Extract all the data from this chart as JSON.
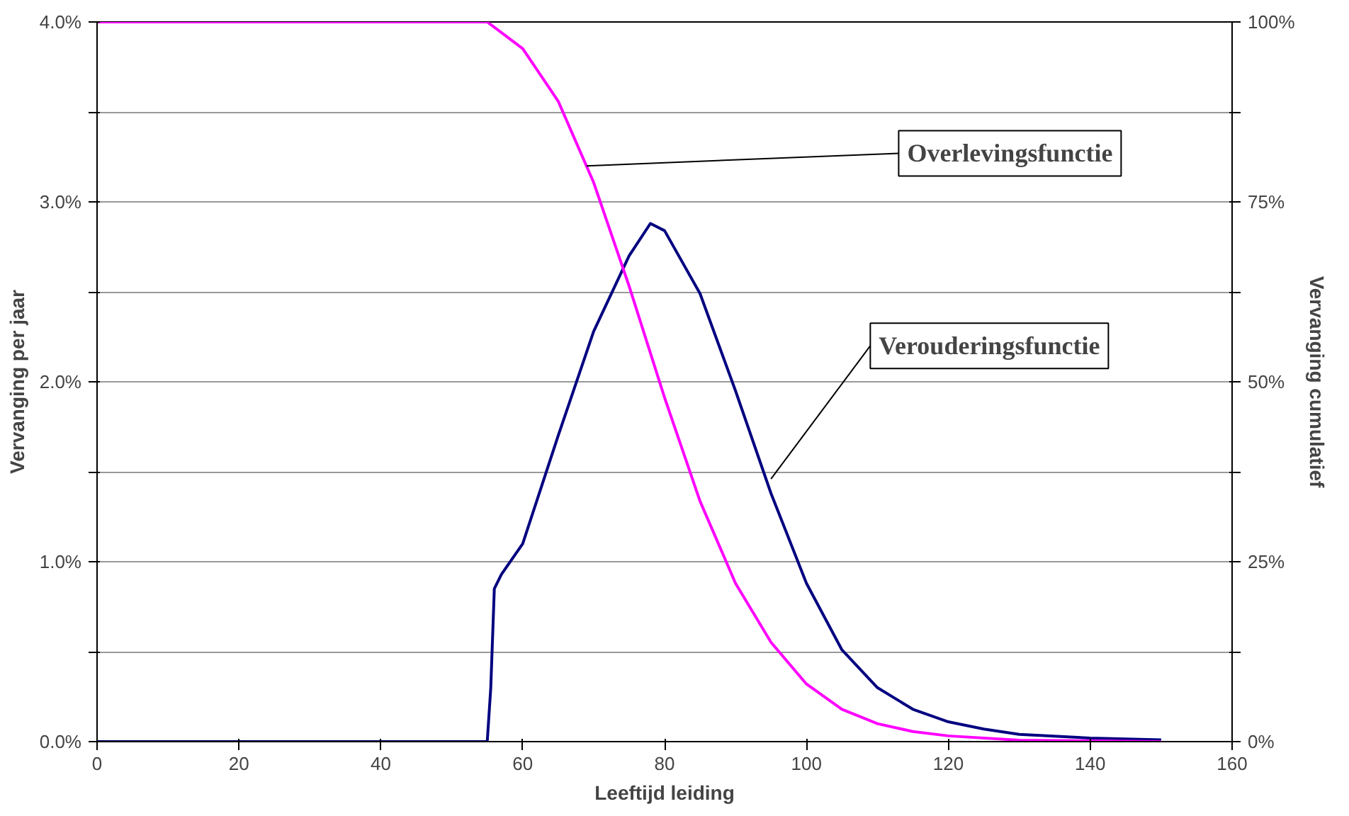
{
  "chart_data": {
    "type": "line",
    "xlabel": "Leeftijd leiding",
    "ylabel": "Vervanging per jaar",
    "y2label": "Vervanging cumulatief",
    "xlim": [
      0,
      160
    ],
    "xticks": [
      0,
      20,
      40,
      60,
      80,
      100,
      120,
      140,
      160
    ],
    "ylim": [
      0,
      4
    ],
    "yticks": [
      {
        "value": 0,
        "label": "0.0%"
      },
      {
        "value": 0.5,
        "label": null
      },
      {
        "value": 1,
        "label": "1.0%"
      },
      {
        "value": 1.5,
        "label": null
      },
      {
        "value": 2,
        "label": "2.0%"
      },
      {
        "value": 2.5,
        "label": null
      },
      {
        "value": 3,
        "label": "3.0%"
      },
      {
        "value": 3.5,
        "label": null
      },
      {
        "value": 4,
        "label": "4.0%"
      }
    ],
    "y2lim": [
      0,
      100
    ],
    "y2ticks": [
      {
        "value": 0,
        "label": "0%"
      },
      {
        "value": 12.5,
        "label": null
      },
      {
        "value": 25,
        "label": "25%"
      },
      {
        "value": 37.5,
        "label": null
      },
      {
        "value": 50,
        "label": "50%"
      },
      {
        "value": 62.5,
        "label": null
      },
      {
        "value": 75,
        "label": "75%"
      },
      {
        "value": 87.5,
        "label": null
      },
      {
        "value": 100,
        "label": "100%"
      }
    ],
    "grid": "y",
    "marker": "none",
    "line_style": "solid",
    "series": [
      {
        "color": "#000080",
        "x": [
          0,
          55,
          55.5,
          56,
          57,
          60,
          65,
          70,
          75,
          78,
          80,
          85,
          90,
          95,
          100,
          105,
          110,
          115,
          120,
          125,
          130,
          140,
          150
        ],
        "values": [
          0,
          0,
          0.3,
          0.85,
          0.93,
          1.1,
          1.7,
          2.28,
          2.7,
          2.88,
          2.84,
          2.49,
          1.95,
          1.38,
          0.88,
          0.51,
          0.3,
          0.18,
          0.11,
          0.07,
          0.04,
          0.02,
          0.01
        ]
      },
      {
        "color": "#ff00ff",
        "axis": "y2",
        "x": [
          0,
          55,
          60,
          65,
          70,
          75,
          80,
          85,
          90,
          95,
          100,
          105,
          110,
          115,
          120,
          130,
          140,
          150
        ],
        "values": [
          100,
          100,
          96.3,
          89,
          77.7,
          63.3,
          47.8,
          33.4,
          22,
          13.8,
          8,
          4.5,
          2.5,
          1.4,
          0.8,
          0.2,
          0.1,
          0
        ]
      }
    ],
    "annotations": [
      {
        "text": "Overlevingsfunctie",
        "x": 69,
        "y": 3.2
      },
      {
        "text": "Verouderingsfunctie",
        "x": 95,
        "y": 1.46
      }
    ]
  }
}
